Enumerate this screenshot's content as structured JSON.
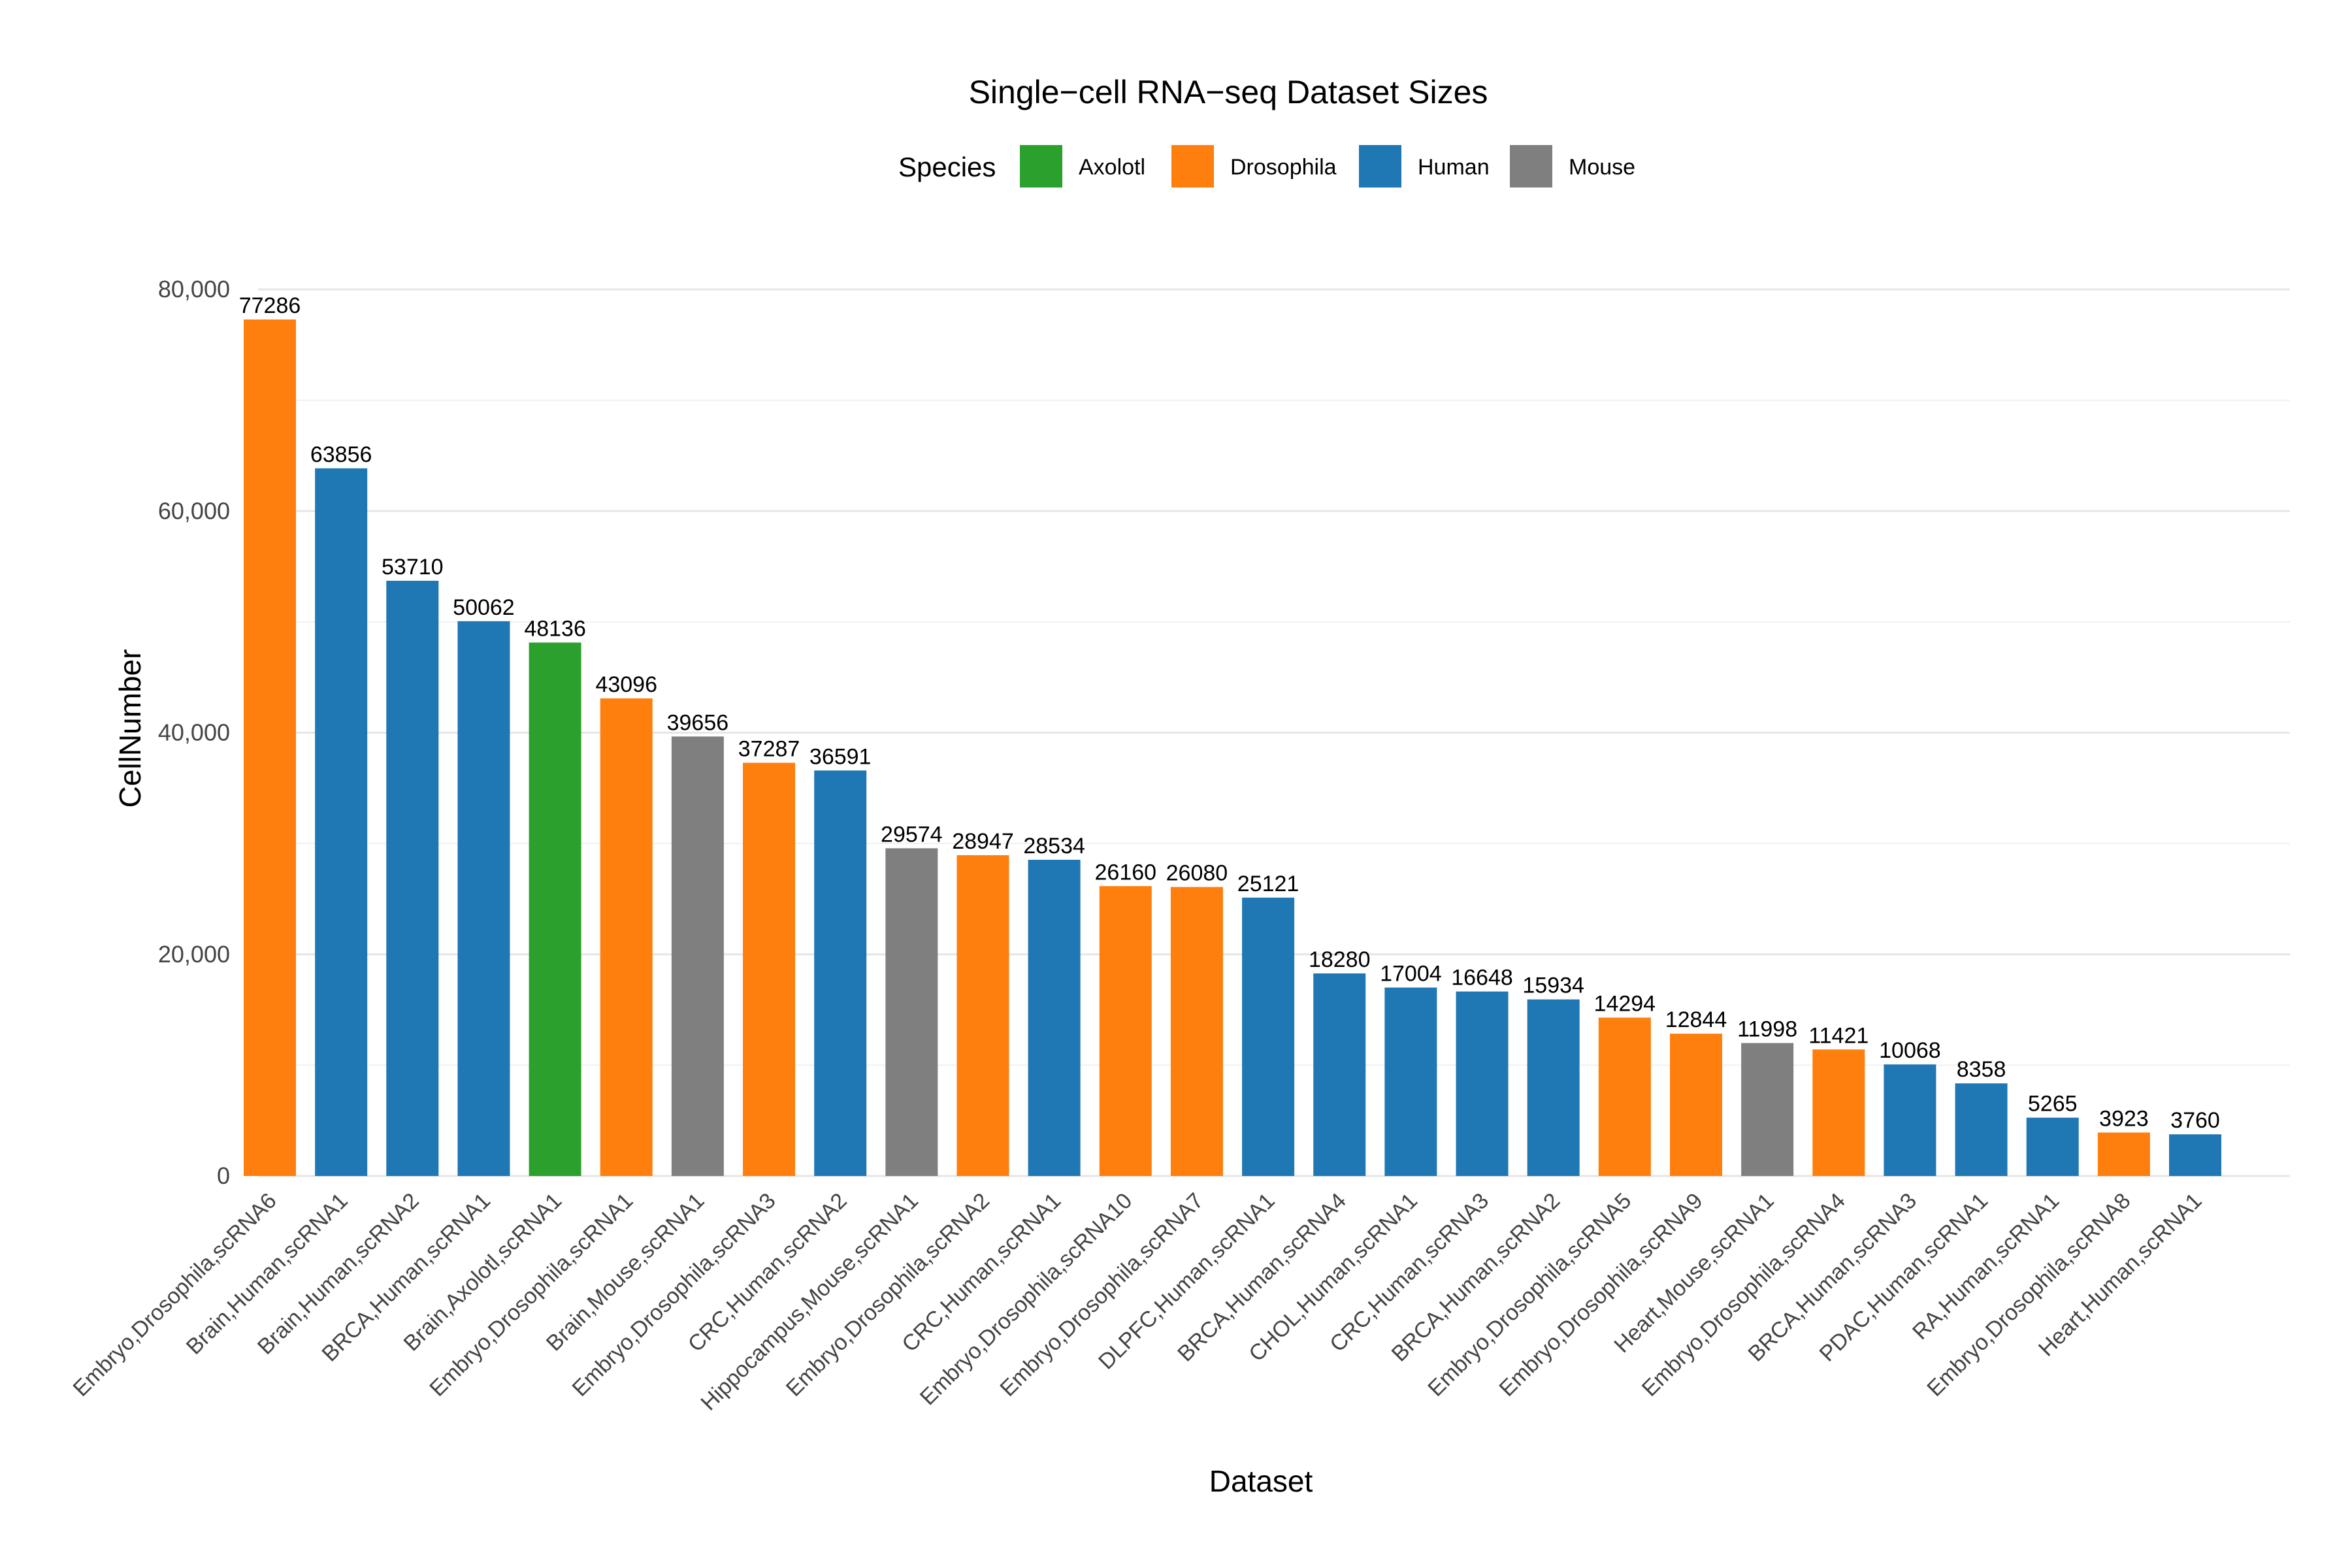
{
  "chart_data": {
    "type": "bar",
    "title": "Single−cell RNA−seq Dataset Sizes",
    "xlabel": "Dataset",
    "ylabel": "CellNumber",
    "ylim": [
      0,
      80000
    ],
    "y_ticks": [
      0,
      20000,
      40000,
      60000,
      80000
    ],
    "y_tick_labels": [
      "0",
      "20,000",
      "40,000",
      "60,000",
      "80,000"
    ],
    "grid": true,
    "legend": {
      "title": "Species",
      "placement": "top",
      "entries": [
        {
          "label": "Axolotl",
          "color": "#2ca02c"
        },
        {
          "label": "Drosophila",
          "color": "#ff7f0e"
        },
        {
          "label": "Human",
          "color": "#1f77b4"
        },
        {
          "label": "Mouse",
          "color": "#7f7f7f"
        }
      ]
    },
    "categories": [
      "Embryo,Drosophila,scRNA6",
      "Brain,Human,scRNA1",
      "Brain,Human,scRNA2",
      "BRCA,Human,scRNA1",
      "Brain,Axolotl,scRNA1",
      "Embryo,Drosophila,scRNA1",
      "Brain,Mouse,scRNA1",
      "Embryo,Drosophila,scRNA3",
      "CRC,Human,scRNA2",
      "Hippocampus,Mouse,scRNA1",
      "Embryo,Drosophila,scRNA2",
      "CRC,Human,scRNA1",
      "Embryo,Drosophila,scRNA10",
      "Embryo,Drosophila,scRNA7",
      "DLPFC,Human,scRNA1",
      "BRCA,Human,scRNA4",
      "CHOL,Human,scRNA1",
      "CRC,Human,scRNA3",
      "BRCA,Human,scRNA2",
      "Embryo,Drosophila,scRNA5",
      "Embryo,Drosophila,scRNA9",
      "Heart,Mouse,scRNA1",
      "Embryo,Drosophila,scRNA4",
      "BRCA,Human,scRNA3",
      "PDAC,Human,scRNA1",
      "RA,Human,scRNA1",
      "Embryo,Drosophila,scRNA8",
      "Heart,Human,scRNA1"
    ],
    "values": [
      77286,
      63856,
      53710,
      50062,
      48136,
      43096,
      39656,
      37287,
      36591,
      29574,
      28947,
      28534,
      26160,
      26080,
      25121,
      18280,
      17004,
      16648,
      15934,
      14294,
      12844,
      11998,
      11421,
      10068,
      8358,
      5265,
      3923,
      3760
    ],
    "species": [
      "Drosophila",
      "Human",
      "Human",
      "Human",
      "Axolotl",
      "Drosophila",
      "Mouse",
      "Drosophila",
      "Human",
      "Mouse",
      "Drosophila",
      "Human",
      "Drosophila",
      "Drosophila",
      "Human",
      "Human",
      "Human",
      "Human",
      "Human",
      "Drosophila",
      "Drosophila",
      "Mouse",
      "Drosophila",
      "Human",
      "Human",
      "Human",
      "Drosophila",
      "Human"
    ],
    "data_labels": [
      "77286",
      "63856",
      "53710",
      "50062",
      "48136",
      "43096",
      "39656",
      "37287",
      "36591",
      "29574",
      "28947",
      "28534",
      "26160",
      "26080",
      "25121",
      "18280",
      "17004",
      "16648",
      "15934",
      "14294",
      "12844",
      "11998",
      "11421",
      "10068",
      "8358",
      "5265",
      "3923",
      "3760"
    ]
  }
}
